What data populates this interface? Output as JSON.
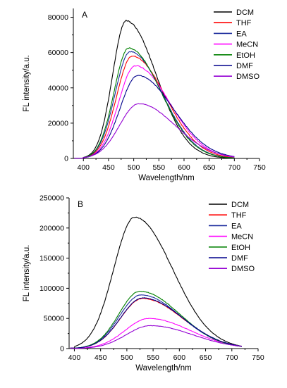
{
  "chart_data": [
    {
      "type": "line",
      "panel_label": "A",
      "xlabel": "Wavelength/nm",
      "ylabel": "FL intensity/a.u.",
      "xlim": [
        380,
        750
      ],
      "ylim": [
        0,
        85000
      ],
      "xticks": [
        400,
        450,
        500,
        550,
        600,
        650,
        700,
        750
      ],
      "yticks": [
        0,
        20000,
        40000,
        60000,
        80000
      ],
      "grid": false,
      "legend_position": "top-right",
      "series": [
        {
          "name": "DCM",
          "color": "#000000",
          "peak_x": 485,
          "peak_y": 78000,
          "sigma_left": 27,
          "sigma_right": 60,
          "onset": 400,
          "end_x": 700,
          "noise": 600,
          "x": [
            400,
            450,
            485,
            550,
            600,
            650,
            700
          ],
          "y": [
            300,
            39000,
            78000,
            43500,
            17000,
            5000,
            1000
          ]
        },
        {
          "name": "THF",
          "color": "#ff0000",
          "peak_x": 497,
          "peak_y": 58000,
          "sigma_left": 31,
          "sigma_right": 66,
          "onset": 400,
          "end_x": 700,
          "noise": 450,
          "x": [
            400,
            450,
            497,
            550,
            600,
            650,
            700
          ],
          "y": [
            300,
            18500,
            58000,
            40500,
            18500,
            6000,
            1200
          ]
        },
        {
          "name": "EA",
          "color": "#1a2a9c",
          "peak_x": 493,
          "peak_y": 60500,
          "sigma_left": 30,
          "sigma_right": 64,
          "onset": 400,
          "end_x": 700,
          "noise": 450,
          "x": [
            400,
            450,
            493,
            550,
            600,
            650,
            700
          ],
          "y": [
            300,
            22500,
            60500,
            41000,
            18000,
            5800,
            1200
          ]
        },
        {
          "name": "MeCN",
          "color": "#ff00ff",
          "peak_x": 503,
          "peak_y": 52500,
          "sigma_left": 33,
          "sigma_right": 68,
          "onset": 400,
          "end_x": 700,
          "noise": 400,
          "x": [
            400,
            450,
            503,
            550,
            600,
            650,
            700
          ],
          "y": [
            300,
            13500,
            52500,
            40000,
            19500,
            6500,
            1400
          ]
        },
        {
          "name": "EtOH",
          "color": "#008000",
          "peak_x": 490,
          "peak_y": 62500,
          "sigma_left": 29,
          "sigma_right": 64,
          "onset": 400,
          "end_x": 700,
          "noise": 500,
          "x": [
            400,
            450,
            490,
            550,
            600,
            650,
            700
          ],
          "y": [
            300,
            24500,
            62500,
            41000,
            17500,
            5600,
            1100
          ]
        },
        {
          "name": "DMF",
          "color": "#00008b",
          "peak_x": 508,
          "peak_y": 47000,
          "sigma_left": 35,
          "sigma_right": 70,
          "onset": 400,
          "end_x": 700,
          "noise": 350,
          "x": [
            400,
            450,
            508,
            550,
            600,
            650,
            700
          ],
          "y": [
            300,
            9500,
            47000,
            39500,
            20000,
            7000,
            1600
          ]
        },
        {
          "name": "DMSO",
          "color": "#9400d3",
          "peak_x": 510,
          "peak_y": 31000,
          "sigma_left": 38,
          "sigma_right": 72,
          "onset": 400,
          "end_x": 700,
          "noise": 300,
          "x": [
            400,
            450,
            510,
            550,
            600,
            650,
            700
          ],
          "y": [
            300,
            6000,
            31000,
            26000,
            13500,
            5000,
            1200
          ]
        }
      ]
    },
    {
      "type": "line",
      "panel_label": "B",
      "xlabel": "Wavelength/nm",
      "ylabel": "FL intensity/a.u.",
      "xlim": [
        390,
        750
      ],
      "ylim": [
        0,
        250000
      ],
      "xticks": [
        400,
        450,
        500,
        550,
        600,
        650,
        700,
        750
      ],
      "yticks": [
        0,
        50000,
        100000,
        150000,
        200000,
        250000
      ],
      "grid": false,
      "legend_position": "top-right",
      "series": [
        {
          "name": "DCM",
          "color": "#000000",
          "peak_x": 515,
          "peak_y": 218000,
          "sigma_left": 40,
          "sigma_right": 72,
          "onset": 400,
          "end_x": 720,
          "noise": 1200,
          "x": [
            400,
            450,
            515,
            550,
            600,
            650,
            720
          ],
          "y": [
            1500,
            60000,
            218000,
            185000,
            105000,
            42000,
            8000
          ]
        },
        {
          "name": "THF",
          "color": "#ff0000",
          "peak_x": 530,
          "peak_y": 83000,
          "sigma_left": 42,
          "sigma_right": 76,
          "onset": 400,
          "end_x": 720,
          "noise": 800,
          "x": [
            400,
            450,
            530,
            550,
            600,
            650,
            720
          ],
          "y": [
            1500,
            16000,
            83000,
            80000,
            55000,
            25000,
            5500
          ]
        },
        {
          "name": "EA",
          "color": "#1a2a9c",
          "peak_x": 527,
          "peak_y": 89000,
          "sigma_left": 41,
          "sigma_right": 75,
          "onset": 400,
          "end_x": 720,
          "noise": 800,
          "x": [
            400,
            450,
            527,
            550,
            600,
            650,
            720
          ],
          "y": [
            1500,
            18000,
            89000,
            85000,
            57000,
            25500,
            5500
          ]
        },
        {
          "name": "MeCN",
          "color": "#ff00ff",
          "peak_x": 542,
          "peak_y": 50000,
          "sigma_left": 45,
          "sigma_right": 78,
          "onset": 400,
          "end_x": 720,
          "noise": 600,
          "x": [
            400,
            450,
            542,
            550,
            600,
            650,
            720
          ],
          "y": [
            1500,
            6500,
            50000,
            49500,
            38000,
            19500,
            4800
          ]
        },
        {
          "name": "EtOH",
          "color": "#008000",
          "peak_x": 525,
          "peak_y": 95000,
          "sigma_left": 40,
          "sigma_right": 75,
          "onset": 400,
          "end_x": 720,
          "noise": 900,
          "x": [
            400,
            450,
            525,
            550,
            600,
            650,
            720
          ],
          "y": [
            1500,
            21000,
            95000,
            90000,
            59000,
            26000,
            5600
          ]
        },
        {
          "name": "DMF",
          "color": "#00008b",
          "peak_x": 530,
          "peak_y": 84000,
          "sigma_left": 42,
          "sigma_right": 76,
          "onset": 400,
          "end_x": 720,
          "noise": 800,
          "x": [
            400,
            450,
            530,
            550,
            600,
            650,
            720
          ],
          "y": [
            1500,
            16500,
            84000,
            81000,
            55500,
            25000,
            5500
          ]
        },
        {
          "name": "DMSO",
          "color": "#9400d3",
          "peak_x": 545,
          "peak_y": 38000,
          "sigma_left": 46,
          "sigma_right": 80,
          "onset": 400,
          "end_x": 720,
          "noise": 500,
          "x": [
            400,
            450,
            545,
            550,
            600,
            650,
            720
          ],
          "y": [
            1500,
            5000,
            38000,
            37800,
            30000,
            16000,
            4200
          ]
        }
      ]
    }
  ]
}
